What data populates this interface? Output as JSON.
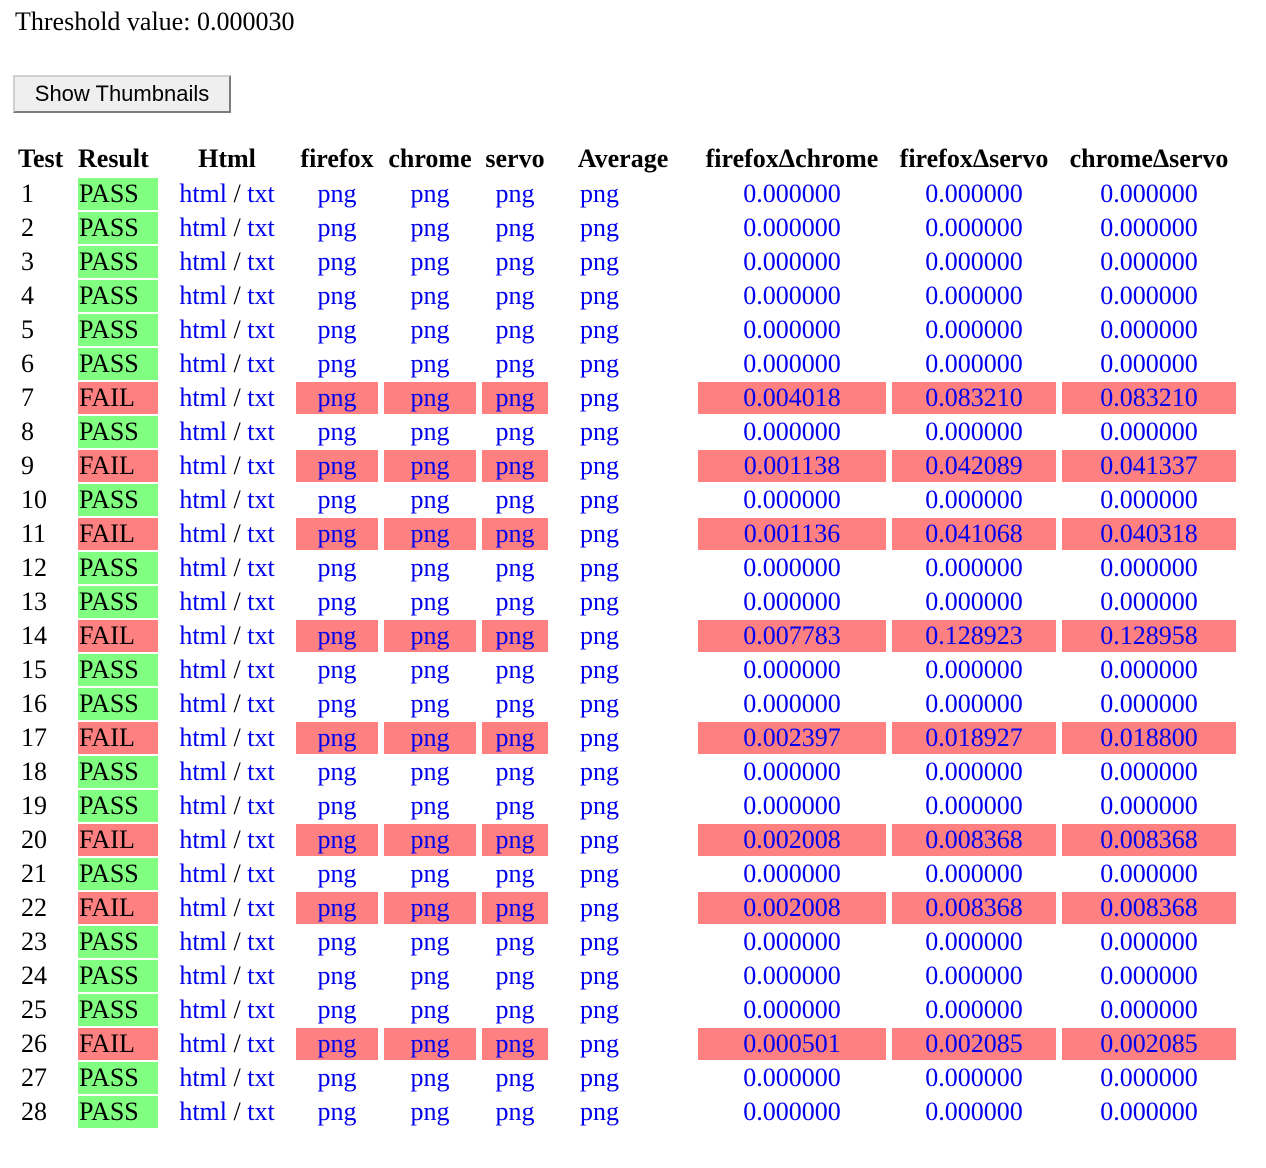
{
  "threshold": {
    "text": "Threshold value: 0.000030"
  },
  "button": {
    "label": "Show Thumbnails"
  },
  "headers": [
    "Test",
    "Result",
    "Html",
    "firefox",
    "chrome",
    "servo",
    "Average",
    "firefoxΔchrome",
    "firefoxΔservo",
    "chromeΔservo"
  ],
  "link_labels": {
    "html": "html",
    "separator": "/",
    "txt": "txt",
    "png": "png"
  },
  "colors": {
    "pass": "#80ff80",
    "fail": "#ff8080",
    "link": "#0000ee"
  },
  "rows": [
    {
      "test": "1",
      "result": "PASS",
      "fc": "0.000000",
      "fs": "0.000000",
      "cs": "0.000000"
    },
    {
      "test": "2",
      "result": "PASS",
      "fc": "0.000000",
      "fs": "0.000000",
      "cs": "0.000000"
    },
    {
      "test": "3",
      "result": "PASS",
      "fc": "0.000000",
      "fs": "0.000000",
      "cs": "0.000000"
    },
    {
      "test": "4",
      "result": "PASS",
      "fc": "0.000000",
      "fs": "0.000000",
      "cs": "0.000000"
    },
    {
      "test": "5",
      "result": "PASS",
      "fc": "0.000000",
      "fs": "0.000000",
      "cs": "0.000000"
    },
    {
      "test": "6",
      "result": "PASS",
      "fc": "0.000000",
      "fs": "0.000000",
      "cs": "0.000000"
    },
    {
      "test": "7",
      "result": "FAIL",
      "fc": "0.004018",
      "fs": "0.083210",
      "cs": "0.083210"
    },
    {
      "test": "8",
      "result": "PASS",
      "fc": "0.000000",
      "fs": "0.000000",
      "cs": "0.000000"
    },
    {
      "test": "9",
      "result": "FAIL",
      "fc": "0.001138",
      "fs": "0.042089",
      "cs": "0.041337"
    },
    {
      "test": "10",
      "result": "PASS",
      "fc": "0.000000",
      "fs": "0.000000",
      "cs": "0.000000"
    },
    {
      "test": "11",
      "result": "FAIL",
      "fc": "0.001136",
      "fs": "0.041068",
      "cs": "0.040318"
    },
    {
      "test": "12",
      "result": "PASS",
      "fc": "0.000000",
      "fs": "0.000000",
      "cs": "0.000000"
    },
    {
      "test": "13",
      "result": "PASS",
      "fc": "0.000000",
      "fs": "0.000000",
      "cs": "0.000000"
    },
    {
      "test": "14",
      "result": "FAIL",
      "fc": "0.007783",
      "fs": "0.128923",
      "cs": "0.128958"
    },
    {
      "test": "15",
      "result": "PASS",
      "fc": "0.000000",
      "fs": "0.000000",
      "cs": "0.000000"
    },
    {
      "test": "16",
      "result": "PASS",
      "fc": "0.000000",
      "fs": "0.000000",
      "cs": "0.000000"
    },
    {
      "test": "17",
      "result": "FAIL",
      "fc": "0.002397",
      "fs": "0.018927",
      "cs": "0.018800"
    },
    {
      "test": "18",
      "result": "PASS",
      "fc": "0.000000",
      "fs": "0.000000",
      "cs": "0.000000"
    },
    {
      "test": "19",
      "result": "PASS",
      "fc": "0.000000",
      "fs": "0.000000",
      "cs": "0.000000"
    },
    {
      "test": "20",
      "result": "FAIL",
      "fc": "0.002008",
      "fs": "0.008368",
      "cs": "0.008368"
    },
    {
      "test": "21",
      "result": "PASS",
      "fc": "0.000000",
      "fs": "0.000000",
      "cs": "0.000000"
    },
    {
      "test": "22",
      "result": "FAIL",
      "fc": "0.002008",
      "fs": "0.008368",
      "cs": "0.008368"
    },
    {
      "test": "23",
      "result": "PASS",
      "fc": "0.000000",
      "fs": "0.000000",
      "cs": "0.000000"
    },
    {
      "test": "24",
      "result": "PASS",
      "fc": "0.000000",
      "fs": "0.000000",
      "cs": "0.000000"
    },
    {
      "test": "25",
      "result": "PASS",
      "fc": "0.000000",
      "fs": "0.000000",
      "cs": "0.000000"
    },
    {
      "test": "26",
      "result": "FAIL",
      "fc": "0.000501",
      "fs": "0.002085",
      "cs": "0.002085"
    },
    {
      "test": "27",
      "result": "PASS",
      "fc": "0.000000",
      "fs": "0.000000",
      "cs": "0.000000"
    },
    {
      "test": "28",
      "result": "PASS",
      "fc": "0.000000",
      "fs": "0.000000",
      "cs": "0.000000"
    }
  ]
}
